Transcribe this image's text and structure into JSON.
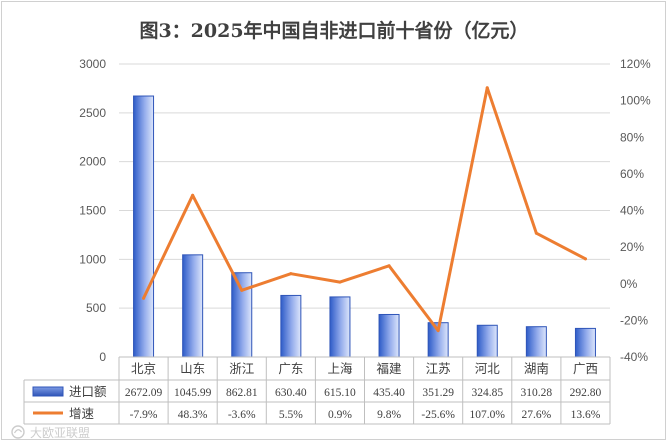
{
  "chart_data": {
    "type": "bar+line",
    "title": "图3：2025年中国自非进口前十省份（亿元）",
    "categories": [
      "北京",
      "山东",
      "浙江",
      "广东",
      "上海",
      "福建",
      "江苏",
      "河北",
      "湖南",
      "广西"
    ],
    "series": [
      {
        "name": "进口额",
        "type": "bar",
        "axis": "left",
        "values": [
          2672.09,
          1045.99,
          862.81,
          630.4,
          615.1,
          435.4,
          351.29,
          324.85,
          310.28,
          292.8
        ],
        "labels": [
          "2672.09",
          "1045.99",
          "862.81",
          "630.40",
          "615.10",
          "435.40",
          "351.29",
          "324.85",
          "310.28",
          "292.80"
        ],
        "color": "#4472c4"
      },
      {
        "name": "增速",
        "type": "line",
        "axis": "right",
        "values": [
          -7.9,
          48.3,
          -3.6,
          5.5,
          0.9,
          9.8,
          -25.6,
          107.0,
          27.6,
          13.6
        ],
        "labels": [
          "-7.9%",
          "48.3%",
          "-3.6%",
          "5.5%",
          "0.9%",
          "9.8%",
          "-25.6%",
          "107.0%",
          "27.6%",
          "13.6%"
        ],
        "color": "#ed7d31"
      }
    ],
    "y_left": {
      "min": 0,
      "max": 3000,
      "ticks": [
        "0",
        "500",
        "1000",
        "1500",
        "2000",
        "2500",
        "3000"
      ]
    },
    "y_right": {
      "min": -40,
      "max": 120,
      "ticks": [
        "-40%",
        "-20%",
        "0%",
        "20%",
        "40%",
        "60%",
        "80%",
        "100%",
        "120%"
      ]
    },
    "grid": true,
    "legend": "data-table"
  },
  "watermark": "大欧亚联盟"
}
